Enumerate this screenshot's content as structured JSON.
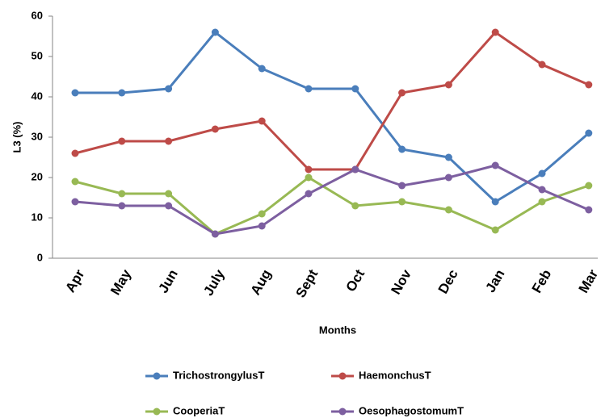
{
  "chart_data": {
    "type": "line",
    "x_label": "Months",
    "y_label": "L3 (%)",
    "categories": [
      "Apr",
      "May",
      "Jun",
      "July",
      "Aug",
      "Sept",
      "Oct",
      "Nov",
      "Dec",
      "Jan",
      "Feb",
      "Mar"
    ],
    "series": [
      {
        "name": "TrichostrongylusT",
        "color": "#4a7ebb",
        "values": [
          41,
          41,
          42,
          56,
          47,
          42,
          42,
          27,
          25,
          14,
          21,
          31
        ]
      },
      {
        "name": "HaemonchusT",
        "color": "#be4b48",
        "values": [
          26,
          29,
          29,
          32,
          34,
          22,
          22,
          41,
          43,
          56,
          48,
          43
        ]
      },
      {
        "name": "CooperiaT",
        "color": "#98b954",
        "values": [
          19,
          16,
          16,
          6,
          11,
          20,
          13,
          14,
          12,
          7,
          14,
          18
        ]
      },
      {
        "name": "OesophagostomumT",
        "color": "#7d5fa0",
        "values": [
          14,
          13,
          13,
          6,
          8,
          16,
          22,
          18,
          20,
          23,
          17,
          12
        ]
      }
    ],
    "ylim": [
      0,
      60
    ],
    "yticks": [
      0,
      10,
      20,
      30,
      40,
      50,
      60
    ]
  }
}
